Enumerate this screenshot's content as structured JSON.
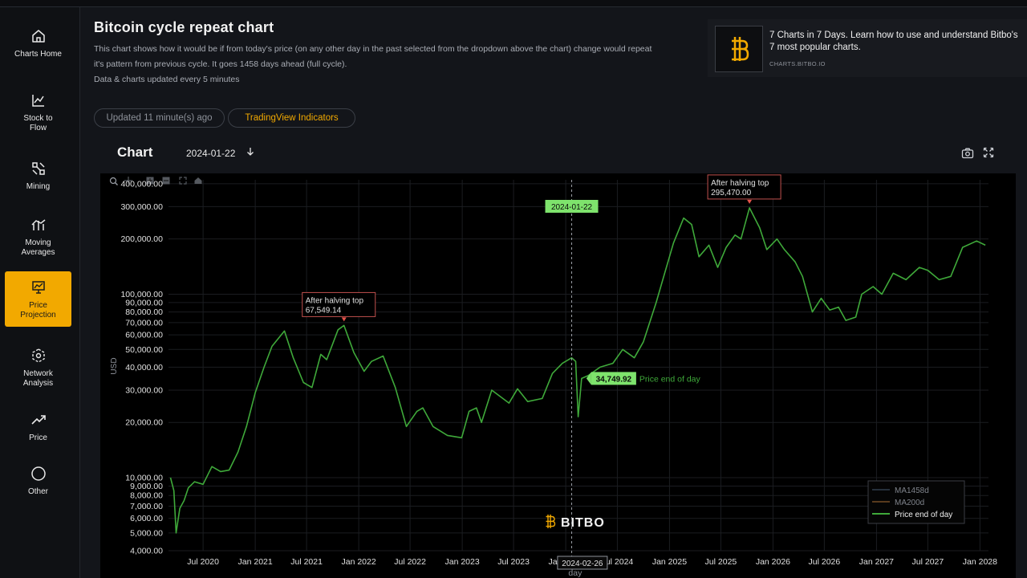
{
  "sidebar": {
    "items": [
      {
        "label": "Charts Home",
        "icon": "home-icon"
      },
      {
        "label": "Stock to Flow",
        "icon": "line-chart-icon"
      },
      {
        "label": "Mining",
        "icon": "mining-icon"
      },
      {
        "label": "Moving Averages",
        "icon": "moving-averages-icon"
      },
      {
        "label": "Price Projection",
        "icon": "price-projection-icon"
      },
      {
        "label": "Network Analysis",
        "icon": "network-icon"
      },
      {
        "label": "Price",
        "icon": "trend-up-icon"
      },
      {
        "label": "Other",
        "icon": "circle-icon"
      }
    ],
    "active_index": 4
  },
  "header": {
    "title": "Bitcoin cycle repeat chart",
    "desc_1": "This chart shows how it would be if from today's price (on any other day in the past selected from the dropdown above the chart) change would repeat",
    "desc_2": "it's pattern from previous cycle. It goes 1458 days ahead (full cycle).",
    "desc_3": "Data & charts updated every 5 minutes"
  },
  "promo": {
    "title_1": "7 Charts in 7 Days. Learn how to use and understand Bitbo's",
    "title_2": "7 most popular charts.",
    "url": "CHARTS.BITBO.IO"
  },
  "pills": {
    "updated": "Updated 11 minute(s) ago",
    "tradingview": "TradingView Indicators"
  },
  "chart_header": {
    "title": "Chart",
    "selected_date": "2024-01-22"
  },
  "colors": {
    "accent": "#f2a900",
    "line": "#3fa93a",
    "highlight_green": "#7ee36c",
    "annotation_border": "#c0504d"
  },
  "chart_data": {
    "type": "line",
    "ylabel": "USD",
    "xlabel": "day",
    "yscale": "log",
    "ylim": [
      4000,
      420000
    ],
    "x_range": [
      "2020-03-01",
      "2028-01-31"
    ],
    "y_ticks": [
      "4,000.00",
      "5,000.00",
      "6,000.00",
      "7,000.00",
      "8,000.00",
      "9,000.00",
      "10,000.00",
      "20,000.00",
      "30,000.00",
      "40,000.00",
      "50,000.00",
      "60,000.00",
      "70,000.00",
      "80,000.00",
      "90,000.00",
      "100,000.00",
      "200,000.00",
      "300,000.00",
      "400,000.00"
    ],
    "y_tick_values": [
      4000,
      5000,
      6000,
      7000,
      8000,
      9000,
      10000,
      20000,
      30000,
      40000,
      50000,
      60000,
      70000,
      80000,
      90000,
      100000,
      200000,
      300000,
      400000
    ],
    "x_ticks": [
      {
        "date": "2020-07-01",
        "label": "Jul 2020"
      },
      {
        "date": "2021-01-01",
        "label": "Jan 2021"
      },
      {
        "date": "2021-07-01",
        "label": "Jul 2021"
      },
      {
        "date": "2022-01-01",
        "label": "Jan 2022"
      },
      {
        "date": "2022-07-01",
        "label": "Jul 2022"
      },
      {
        "date": "2023-01-01",
        "label": "Jan 2023"
      },
      {
        "date": "2023-07-01",
        "label": "Jul 2023"
      },
      {
        "date": "2024-01-01",
        "label": "Jan 2024"
      },
      {
        "date": "2024-07-01",
        "label": "Jul 2024"
      },
      {
        "date": "2025-01-01",
        "label": "Jan 2025"
      },
      {
        "date": "2025-07-01",
        "label": "Jul 2025"
      },
      {
        "date": "2026-01-01",
        "label": "Jan 2026"
      },
      {
        "date": "2026-07-01",
        "label": "Jul 2026"
      },
      {
        "date": "2027-01-01",
        "label": "Jan 2027"
      },
      {
        "date": "2027-07-01",
        "label": "Jul 2027"
      },
      {
        "date": "2028-01-01",
        "label": "Jan 2028"
      }
    ],
    "series": [
      {
        "name": "Price end of day",
        "points": [
          [
            "2020-03-08",
            10000
          ],
          [
            "2020-03-20",
            8500
          ],
          [
            "2020-03-28",
            5000
          ],
          [
            "2020-04-10",
            6800
          ],
          [
            "2020-04-25",
            7500
          ],
          [
            "2020-05-10",
            8800
          ],
          [
            "2020-06-01",
            9500
          ],
          [
            "2020-07-01",
            9200
          ],
          [
            "2020-08-01",
            11500
          ],
          [
            "2020-09-01",
            10800
          ],
          [
            "2020-10-01",
            11000
          ],
          [
            "2020-11-01",
            13800
          ],
          [
            "2020-12-01",
            19000
          ],
          [
            "2021-01-01",
            29000
          ],
          [
            "2021-02-01",
            40000
          ],
          [
            "2021-03-01",
            52000
          ],
          [
            "2021-04-14",
            63000
          ],
          [
            "2021-05-15",
            45000
          ],
          [
            "2021-06-20",
            33000
          ],
          [
            "2021-07-20",
            31000
          ],
          [
            "2021-08-20",
            47000
          ],
          [
            "2021-09-10",
            44000
          ],
          [
            "2021-10-20",
            64000
          ],
          [
            "2021-11-10",
            67549
          ],
          [
            "2021-12-15",
            48000
          ],
          [
            "2022-01-20",
            38000
          ],
          [
            "2022-02-15",
            43000
          ],
          [
            "2022-03-28",
            46000
          ],
          [
            "2022-05-10",
            31000
          ],
          [
            "2022-06-18",
            19000
          ],
          [
            "2022-07-25",
            23000
          ],
          [
            "2022-08-15",
            24000
          ],
          [
            "2022-09-20",
            19000
          ],
          [
            "2022-11-10",
            17000
          ],
          [
            "2022-12-30",
            16500
          ],
          [
            "2023-01-25",
            23000
          ],
          [
            "2023-02-20",
            24000
          ],
          [
            "2023-03-10",
            20000
          ],
          [
            "2023-04-15",
            30000
          ],
          [
            "2023-06-15",
            25500
          ],
          [
            "2023-07-15",
            30500
          ],
          [
            "2023-08-20",
            26000
          ],
          [
            "2023-10-10",
            27000
          ],
          [
            "2023-11-15",
            37000
          ],
          [
            "2023-12-20",
            42000
          ],
          [
            "2024-01-22",
            45000
          ],
          [
            "2024-02-05",
            43000
          ],
          [
            "2024-02-14",
            21500
          ],
          [
            "2024-02-26",
            34750
          ],
          [
            "2024-03-20",
            36000
          ],
          [
            "2024-05-01",
            40000
          ],
          [
            "2024-06-15",
            42000
          ],
          [
            "2024-07-20",
            50000
          ],
          [
            "2024-08-30",
            45000
          ],
          [
            "2024-10-01",
            55000
          ],
          [
            "2024-11-15",
            90000
          ],
          [
            "2024-12-15",
            130000
          ],
          [
            "2025-01-15",
            190000
          ],
          [
            "2025-02-20",
            260000
          ],
          [
            "2025-03-20",
            240000
          ],
          [
            "2025-04-15",
            160000
          ],
          [
            "2025-05-20",
            185000
          ],
          [
            "2025-06-20",
            140000
          ],
          [
            "2025-07-20",
            180000
          ],
          [
            "2025-08-20",
            210000
          ],
          [
            "2025-09-10",
            200000
          ],
          [
            "2025-10-10",
            295470
          ],
          [
            "2025-11-15",
            230000
          ],
          [
            "2025-12-10",
            175000
          ],
          [
            "2026-01-15",
            200000
          ],
          [
            "2026-02-10",
            175000
          ],
          [
            "2026-03-20",
            150000
          ],
          [
            "2026-04-15",
            125000
          ],
          [
            "2026-05-20",
            80000
          ],
          [
            "2026-06-20",
            95000
          ],
          [
            "2026-07-20",
            82000
          ],
          [
            "2026-08-20",
            85000
          ],
          [
            "2026-09-15",
            72000
          ],
          [
            "2026-10-20",
            75000
          ],
          [
            "2026-11-10",
            100000
          ],
          [
            "2026-12-20",
            110000
          ],
          [
            "2027-01-20",
            100000
          ],
          [
            "2027-03-01",
            130000
          ],
          [
            "2027-04-15",
            120000
          ],
          [
            "2027-06-01",
            140000
          ],
          [
            "2027-07-01",
            135000
          ],
          [
            "2027-08-10",
            120000
          ],
          [
            "2027-09-20",
            125000
          ],
          [
            "2027-11-01",
            180000
          ],
          [
            "2027-12-20",
            195000
          ],
          [
            "2028-01-20",
            185000
          ]
        ]
      },
      {
        "name": "MA1458d",
        "points": []
      },
      {
        "name": "MA200d",
        "points": []
      }
    ],
    "annotations": [
      {
        "date": "2021-11-10",
        "value": 67549.14,
        "label_1": "After halving top",
        "label_2": "67,549.14"
      },
      {
        "date": "2025-10-10",
        "value": 295470,
        "label_1": "After halving top",
        "label_2": "295,470.00"
      }
    ],
    "crosshair": {
      "date": "2024-01-22",
      "top_label": "2024-01-22",
      "hover_date": "2024-02-26",
      "hover_value_label": "34,749.92",
      "hover_series_label": "Price end of day"
    },
    "legend": {
      "position": "bottom-right",
      "entries": [
        {
          "name": "MA1458d",
          "color": "#3a4a5c"
        },
        {
          "name": "MA200d",
          "color": "#8a5a2c"
        },
        {
          "name": "Price end of day",
          "color": "#3fa93a"
        }
      ]
    },
    "watermark": "BITBO"
  }
}
